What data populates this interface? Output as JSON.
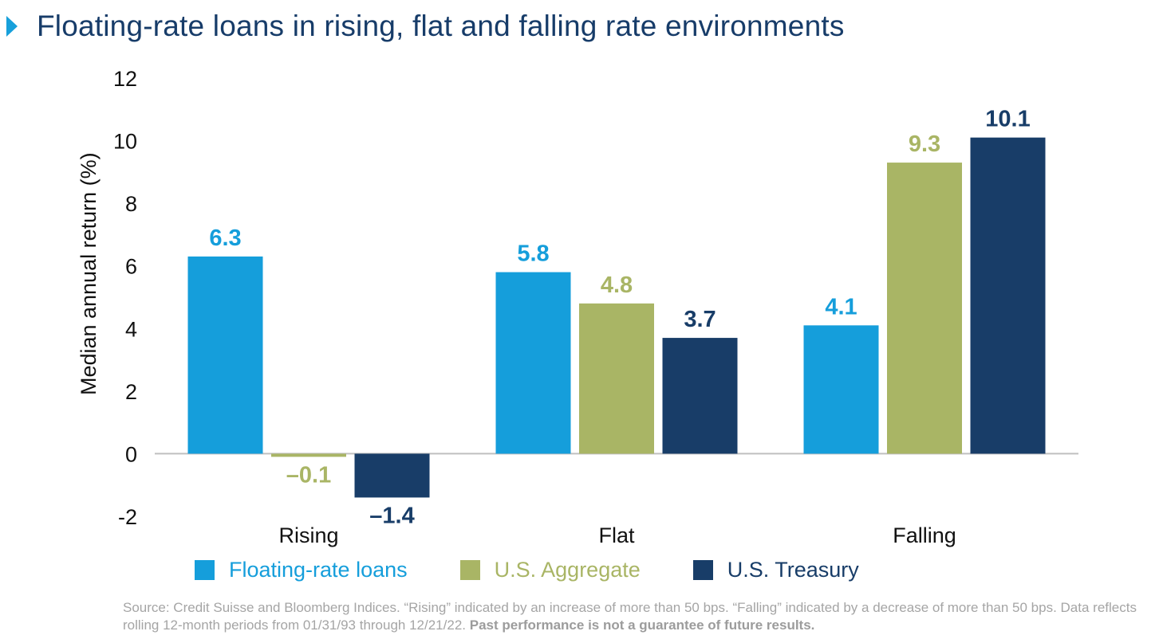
{
  "title": "Floating-rate loans in rising, flat and falling rate environments",
  "colors": {
    "floating": "#159edb",
    "aggregate": "#a9b565",
    "treasury": "#183d68",
    "title": "#173c69",
    "axis": "#bfbfbf"
  },
  "chart_data": {
    "type": "bar",
    "title": "Floating-rate loans in rising, flat and falling rate environments",
    "ylabel": "Median annual return (%)",
    "xlabel": "",
    "ylim": [
      -2,
      12
    ],
    "yticks": [
      -2,
      0,
      2,
      4,
      6,
      8,
      10,
      12
    ],
    "ytick_labels": [
      "-2",
      "0",
      "2",
      "4",
      "6",
      "8",
      "10",
      "12"
    ],
    "categories": [
      "Rising",
      "Flat",
      "Falling"
    ],
    "series": [
      {
        "name": "Floating-rate loans",
        "color": "#159edb",
        "values": [
          6.3,
          5.8,
          4.1
        ],
        "labels": [
          "6.3",
          "5.8",
          "4.1"
        ]
      },
      {
        "name": "U.S. Aggregate",
        "color": "#a9b565",
        "values": [
          -0.1,
          4.8,
          9.3
        ],
        "labels": [
          "–0.1",
          "4.8",
          "9.3"
        ]
      },
      {
        "name": "U.S. Treasury",
        "color": "#183d68",
        "values": [
          -1.4,
          3.7,
          10.1
        ],
        "labels": [
          "–1.4",
          "3.7",
          "10.1"
        ]
      }
    ],
    "legend_position": "bottom"
  },
  "legend": [
    {
      "label": "Floating-rate loans",
      "color": "#159edb"
    },
    {
      "label": "U.S. Aggregate",
      "color": "#a9b565"
    },
    {
      "label": "U.S. Treasury",
      "color": "#183d68"
    }
  ],
  "source": {
    "text": "Source: Credit Suisse and Bloomberg Indices. “Rising” indicated by an increase of more than 50 bps. “Falling” indicated by a decrease of more than 50 bps. Data reflects rolling 12-month periods from 01/31/93 through 12/21/22.",
    "disclaimer": "Past performance is not a guarantee of future results."
  }
}
